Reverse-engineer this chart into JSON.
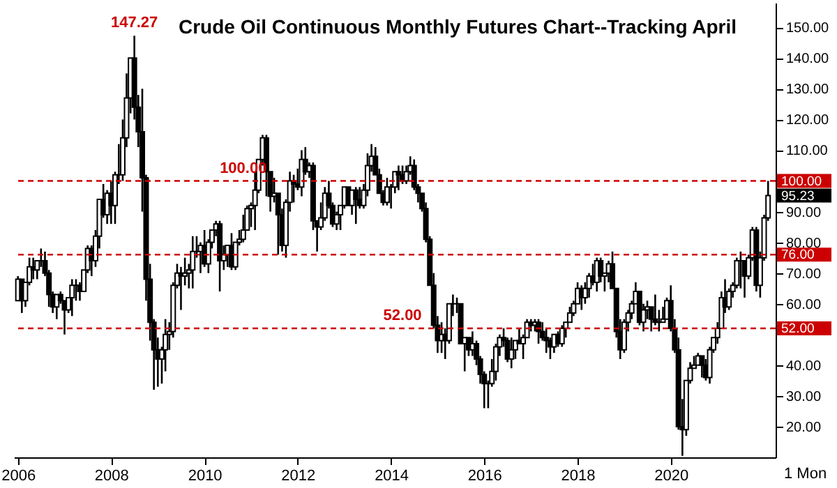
{
  "chart_data": {
    "type": "candlestick",
    "title": "Crude Oil Continuous Monthly Futures Chart--Tracking April",
    "x": [
      "2006-01",
      "2006-02",
      "2006-03",
      "2006-04",
      "2006-05",
      "2006-06",
      "2006-07",
      "2006-08",
      "2006-09",
      "2006-10",
      "2006-11",
      "2006-12",
      "2007-01",
      "2007-02",
      "2007-03",
      "2007-04",
      "2007-05",
      "2007-06",
      "2007-07",
      "2007-08",
      "2007-09",
      "2007-10",
      "2007-11",
      "2007-12",
      "2008-01",
      "2008-02",
      "2008-03",
      "2008-04",
      "2008-05",
      "2008-06",
      "2008-07",
      "2008-08",
      "2008-09",
      "2008-10",
      "2008-11",
      "2008-12",
      "2009-01",
      "2009-02",
      "2009-03",
      "2009-04",
      "2009-05",
      "2009-06",
      "2009-07",
      "2009-08",
      "2009-09",
      "2009-10",
      "2009-11",
      "2009-12",
      "2010-01",
      "2010-02",
      "2010-03",
      "2010-04",
      "2010-05",
      "2010-06",
      "2010-07",
      "2010-08",
      "2010-09",
      "2010-10",
      "2010-11",
      "2010-12",
      "2011-01",
      "2011-02",
      "2011-03",
      "2011-04",
      "2011-05",
      "2011-06",
      "2011-07",
      "2011-08",
      "2011-09",
      "2011-10",
      "2011-11",
      "2011-12",
      "2012-01",
      "2012-02",
      "2012-03",
      "2012-04",
      "2012-05",
      "2012-06",
      "2012-07",
      "2012-08",
      "2012-09",
      "2012-10",
      "2012-11",
      "2012-12",
      "2013-01",
      "2013-02",
      "2013-03",
      "2013-04",
      "2013-05",
      "2013-06",
      "2013-07",
      "2013-08",
      "2013-09",
      "2013-10",
      "2013-11",
      "2013-12",
      "2014-01",
      "2014-02",
      "2014-03",
      "2014-04",
      "2014-05",
      "2014-06",
      "2014-07",
      "2014-08",
      "2014-09",
      "2014-10",
      "2014-11",
      "2014-12",
      "2015-01",
      "2015-02",
      "2015-03",
      "2015-04",
      "2015-05",
      "2015-06",
      "2015-07",
      "2015-08",
      "2015-09",
      "2015-10",
      "2015-11",
      "2015-12",
      "2016-01",
      "2016-02",
      "2016-03",
      "2016-04",
      "2016-05",
      "2016-06",
      "2016-07",
      "2016-08",
      "2016-09",
      "2016-10",
      "2016-11",
      "2016-12",
      "2017-01",
      "2017-02",
      "2017-03",
      "2017-04",
      "2017-05",
      "2017-06",
      "2017-07",
      "2017-08",
      "2017-09",
      "2017-10",
      "2017-11",
      "2017-12",
      "2018-01",
      "2018-02",
      "2018-03",
      "2018-04",
      "2018-05",
      "2018-06",
      "2018-07",
      "2018-08",
      "2018-09",
      "2018-10",
      "2018-11",
      "2018-12",
      "2019-01",
      "2019-02",
      "2019-03",
      "2019-04",
      "2019-05",
      "2019-06",
      "2019-07",
      "2019-08",
      "2019-09",
      "2019-10",
      "2019-11",
      "2019-12",
      "2020-01",
      "2020-02",
      "2020-03",
      "2020-04",
      "2020-05",
      "2020-06",
      "2020-07",
      "2020-08",
      "2020-09",
      "2020-10",
      "2020-11",
      "2020-12",
      "2021-01",
      "2021-02",
      "2021-03",
      "2021-04",
      "2021-05",
      "2021-06",
      "2021-07",
      "2021-08",
      "2021-09",
      "2021-10",
      "2021-11",
      "2021-12",
      "2022-01",
      "2022-02"
    ],
    "ohlc": [
      [
        61,
        69,
        61,
        68
      ],
      [
        68,
        68,
        57,
        61
      ],
      [
        61,
        67,
        59,
        67
      ],
      [
        67,
        75,
        66,
        72
      ],
      [
        72,
        75,
        68,
        71
      ],
      [
        71,
        74,
        68,
        74
      ],
      [
        74,
        78,
        72,
        74
      ],
      [
        74,
        77,
        69,
        70
      ],
      [
        70,
        71,
        59,
        63
      ],
      [
        63,
        64,
        57,
        59
      ],
      [
        59,
        63,
        55,
        63
      ],
      [
        63,
        64,
        60,
        61
      ],
      [
        61,
        61,
        50,
        58
      ],
      [
        58,
        62,
        57,
        62
      ],
      [
        62,
        68,
        56,
        66
      ],
      [
        66,
        68,
        61,
        66
      ],
      [
        66,
        67,
        61,
        64
      ],
      [
        64,
        71,
        64,
        71
      ],
      [
        71,
        79,
        70,
        78
      ],
      [
        78,
        79,
        69,
        74
      ],
      [
        74,
        84,
        72,
        82
      ],
      [
        82,
        94,
        78,
        94
      ],
      [
        94,
        99,
        88,
        89
      ],
      [
        89,
        97,
        86,
        96
      ],
      [
        96,
        100,
        86,
        92
      ],
      [
        92,
        103,
        86,
        102
      ],
      [
        102,
        112,
        99,
        102
      ],
      [
        102,
        120,
        100,
        114
      ],
      [
        114,
        135,
        111,
        127
      ],
      [
        127,
        140,
        122,
        140
      ],
      [
        140,
        147.27,
        120,
        124
      ],
      [
        124,
        128,
        111,
        116
      ],
      [
        116,
        130,
        90,
        101
      ],
      [
        101,
        102,
        61,
        68
      ],
      [
        68,
        73,
        48,
        54
      ],
      [
        54,
        55,
        32,
        45
      ],
      [
        45,
        49,
        33,
        42
      ],
      [
        42,
        46,
        34,
        45
      ],
      [
        45,
        55,
        38,
        50
      ],
      [
        50,
        54,
        45,
        51
      ],
      [
        51,
        67,
        49,
        66
      ],
      [
        66,
        73,
        65,
        70
      ],
      [
        70,
        72,
        58,
        69
      ],
      [
        69,
        75,
        66,
        70
      ],
      [
        70,
        73,
        65,
        71
      ],
      [
        71,
        82,
        65,
        77
      ],
      [
        77,
        82,
        75,
        77
      ],
      [
        77,
        80,
        70,
        79
      ],
      [
        79,
        84,
        72,
        73
      ],
      [
        73,
        81,
        70,
        80
      ],
      [
        80,
        84,
        78,
        84
      ],
      [
        84,
        87,
        82,
        86
      ],
      [
        86,
        87,
        64,
        74
      ],
      [
        74,
        79,
        71,
        76
      ],
      [
        76,
        79,
        72,
        79
      ],
      [
        79,
        83,
        71,
        72
      ],
      [
        72,
        80,
        71,
        80
      ],
      [
        80,
        84,
        79,
        81
      ],
      [
        81,
        89,
        80,
        84
      ],
      [
        84,
        92,
        84,
        91
      ],
      [
        91,
        93,
        85,
        92
      ],
      [
        92,
        103,
        84,
        97
      ],
      [
        97,
        107,
        96,
        107
      ],
      [
        107,
        115,
        105,
        114
      ],
      [
        114,
        115,
        95,
        103
      ],
      [
        103,
        103,
        90,
        95
      ],
      [
        95,
        101,
        93,
        96
      ],
      [
        96,
        96,
        76,
        89
      ],
      [
        89,
        91,
        77,
        79
      ],
      [
        79,
        94,
        75,
        93
      ],
      [
        93,
        103,
        90,
        100
      ],
      [
        100,
        102,
        93,
        99
      ],
      [
        99,
        104,
        97,
        98
      ],
      [
        98,
        110,
        95,
        107
      ],
      [
        107,
        111,
        102,
        103
      ],
      [
        103,
        106,
        101,
        105
      ],
      [
        105,
        106,
        84,
        87
      ],
      [
        87,
        87,
        77,
        85
      ],
      [
        85,
        93,
        84,
        88
      ],
      [
        88,
        98,
        87,
        96
      ],
      [
        96,
        100,
        91,
        92
      ],
      [
        92,
        93,
        85,
        86
      ],
      [
        86,
        90,
        84,
        89
      ],
      [
        89,
        92,
        84,
        92
      ],
      [
        92,
        98,
        91,
        98
      ],
      [
        98,
        98,
        92,
        92
      ],
      [
        92,
        97,
        89,
        97
      ],
      [
        97,
        98,
        86,
        94
      ],
      [
        94,
        98,
        91,
        92
      ],
      [
        92,
        99,
        91,
        97
      ],
      [
        97,
        109,
        95,
        105
      ],
      [
        105,
        112,
        103,
        108
      ],
      [
        108,
        111,
        102,
        102
      ],
      [
        102,
        104,
        96,
        96
      ],
      [
        96,
        97,
        92,
        93
      ],
      [
        93,
        101,
        92,
        98
      ],
      [
        98,
        99,
        91,
        98
      ],
      [
        98,
        103,
        96,
        103
      ],
      [
        103,
        105,
        97,
        102
      ],
      [
        102,
        105,
        99,
        100
      ],
      [
        100,
        105,
        99,
        103
      ],
      [
        103,
        108,
        102,
        105
      ],
      [
        105,
        107,
        97,
        98
      ],
      [
        98,
        99,
        93,
        96
      ],
      [
        96,
        96,
        90,
        91
      ],
      [
        91,
        93,
        80,
        81
      ],
      [
        81,
        82,
        66,
        66
      ],
      [
        66,
        70,
        52,
        53
      ],
      [
        53,
        56,
        44,
        48
      ],
      [
        48,
        54,
        44,
        50
      ],
      [
        50,
        52,
        42,
        48
      ],
      [
        48,
        60,
        47,
        60
      ],
      [
        60,
        63,
        56,
        60
      ],
      [
        60,
        62,
        57,
        60
      ],
      [
        60,
        60,
        47,
        47
      ],
      [
        47,
        49,
        38,
        49
      ],
      [
        49,
        49,
        43,
        45
      ],
      [
        45,
        51,
        43,
        47
      ],
      [
        47,
        48,
        40,
        42
      ],
      [
        42,
        43,
        34,
        37
      ],
      [
        37,
        38,
        26,
        34
      ],
      [
        34,
        35,
        26,
        34
      ],
      [
        34,
        42,
        33,
        38
      ],
      [
        38,
        47,
        35,
        46
      ],
      [
        46,
        50,
        43,
        49
      ],
      [
        49,
        52,
        46,
        48
      ],
      [
        48,
        49,
        41,
        42
      ],
      [
        42,
        49,
        39,
        45
      ],
      [
        45,
        48,
        42,
        48
      ],
      [
        48,
        52,
        47,
        47
      ],
      [
        47,
        50,
        42,
        49
      ],
      [
        49,
        55,
        49,
        54
      ],
      [
        54,
        55,
        51,
        53
      ],
      [
        53,
        55,
        51,
        54
      ],
      [
        54,
        55,
        47,
        51
      ],
      [
        51,
        54,
        48,
        49
      ],
      [
        49,
        52,
        44,
        48
      ],
      [
        48,
        49,
        42,
        46
      ],
      [
        46,
        50,
        44,
        50
      ],
      [
        50,
        51,
        46,
        47
      ],
      [
        47,
        53,
        46,
        52
      ],
      [
        52,
        54,
        49,
        54
      ],
      [
        54,
        59,
        54,
        57
      ],
      [
        57,
        61,
        56,
        60
      ],
      [
        60,
        67,
        60,
        65
      ],
      [
        65,
        66,
        58,
        62
      ],
      [
        62,
        67,
        60,
        65
      ],
      [
        65,
        70,
        62,
        69
      ],
      [
        69,
        73,
        66,
        67
      ],
      [
        67,
        75,
        64,
        74
      ],
      [
        74,
        75,
        67,
        69
      ],
      [
        69,
        70,
        64,
        70
      ],
      [
        70,
        74,
        67,
        73
      ],
      [
        73,
        77,
        65,
        65
      ],
      [
        65,
        65,
        49,
        51
      ],
      [
        51,
        55,
        42,
        45
      ],
      [
        45,
        55,
        44,
        54
      ],
      [
        54,
        58,
        51,
        57
      ],
      [
        57,
        61,
        55,
        60
      ],
      [
        60,
        67,
        60,
        64
      ],
      [
        64,
        64,
        53,
        54
      ],
      [
        54,
        60,
        51,
        58
      ],
      [
        58,
        61,
        55,
        59
      ],
      [
        59,
        59,
        51,
        55
      ],
      [
        55,
        63,
        53,
        54
      ],
      [
        54,
        58,
        51,
        54
      ],
      [
        54,
        59,
        54,
        55
      ],
      [
        55,
        62,
        55,
        61
      ],
      [
        61,
        66,
        51,
        52
      ],
      [
        52,
        55,
        44,
        45
      ],
      [
        45,
        49,
        19,
        20
      ],
      [
        20,
        29,
        10.5,
        19
      ],
      [
        19,
        35,
        17,
        35
      ],
      [
        35,
        41,
        34,
        39
      ],
      [
        39,
        43,
        39,
        40
      ],
      [
        40,
        44,
        40,
        43
      ],
      [
        43,
        43,
        36,
        40
      ],
      [
        40,
        42,
        35,
        36
      ],
      [
        36,
        46,
        34,
        45
      ],
      [
        45,
        49,
        44,
        49
      ],
      [
        49,
        54,
        47,
        52
      ],
      [
        52,
        64,
        52,
        62
      ],
      [
        62,
        68,
        57,
        59
      ],
      [
        59,
        65,
        58,
        64
      ],
      [
        64,
        67,
        62,
        66
      ],
      [
        66,
        75,
        65,
        74
      ],
      [
        74,
        77,
        65,
        74
      ],
      [
        74,
        74,
        62,
        69
      ],
      [
        69,
        76,
        68,
        75
      ],
      [
        75,
        85,
        74,
        84
      ],
      [
        84,
        85,
        64,
        66
      ],
      [
        66,
        77,
        62,
        75
      ],
      [
        75,
        89,
        74,
        88
      ],
      [
        88,
        100,
        87,
        95.23
      ]
    ],
    "color": "#000000",
    "xlim": [
      "2005-12",
      "2022-04"
    ],
    "xticks": [
      "2006",
      "2008",
      "2010",
      "2012",
      "2014",
      "2016",
      "2018",
      "2020"
    ],
    "ylim": [
      10,
      158
    ],
    "yticks": [
      {
        "value": 20,
        "label": "20.00"
      },
      {
        "value": 30,
        "label": "30.00"
      },
      {
        "value": 40,
        "label": "40.00"
      },
      {
        "value": 60,
        "label": "60.00"
      },
      {
        "value": 70,
        "label": "70.00"
      },
      {
        "value": 80,
        "label": "80.00"
      },
      {
        "value": 90,
        "label": "90.00"
      },
      {
        "value": 110,
        "label": "110.00"
      },
      {
        "value": 120,
        "label": "120.00"
      },
      {
        "value": 130,
        "label": "130.00"
      },
      {
        "value": 140,
        "label": "140.00"
      },
      {
        "value": 150,
        "label": "150.00"
      }
    ],
    "ref_lines": [
      {
        "axis": "y",
        "value": 100,
        "label": "100.00",
        "color": "#cc0000",
        "line_style": "dashed"
      },
      {
        "axis": "y",
        "value": 76,
        "label": "76.00",
        "color": "#cc0000",
        "line_style": "dashed"
      },
      {
        "axis": "y",
        "value": 52,
        "label": "52.00",
        "color": "#cc0000",
        "line_style": "dashed"
      }
    ],
    "annotations": [
      {
        "text": "147.27",
        "x": "2008-07",
        "y": 147.27
      },
      {
        "text": "100.00",
        "x": "2010-11",
        "y": 100
      },
      {
        "text": "52.00",
        "x": "2014-04",
        "y": 52
      },
      {
        "text": "95.23",
        "x": "2022-02",
        "y": 95.23
      },
      "1 Mon"
    ],
    "grid": false
  }
}
